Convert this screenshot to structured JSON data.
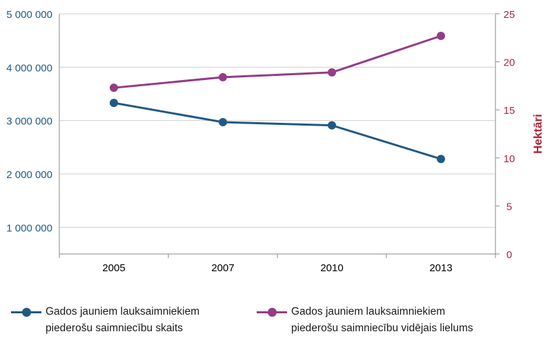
{
  "chart_data": {
    "type": "line",
    "categories": [
      "2005",
      "2007",
      "2010",
      "2013"
    ],
    "y_left": {
      "range": [
        500000,
        5000000
      ],
      "ticks": [
        1000000,
        2000000,
        3000000,
        4000000,
        5000000
      ],
      "tick_labels": [
        "1 000 000",
        "2 000 000",
        "3 000 000",
        "4 000 000",
        "5 000 000"
      ],
      "color": "#1f5a84"
    },
    "y_right": {
      "label": "Hektāri",
      "range": [
        0,
        25
      ],
      "ticks": [
        0,
        5,
        10,
        15,
        20,
        25
      ],
      "tick_labels": [
        "0",
        "5",
        "10",
        "15",
        "20",
        "25"
      ],
      "color": "#b0263d"
    },
    "series": [
      {
        "name": "Gados jauniem lauksaimniekiem piederošu saimniecību skaits",
        "axis": "left",
        "color": "#1f5a84",
        "values": [
          3330000,
          2970000,
          2910000,
          2280000
        ]
      },
      {
        "name": "Gados jauniem lauksaimniekiem piederošu saimniecību vidējais lielums",
        "axis": "right",
        "color": "#953c86",
        "values": [
          17.3,
          18.4,
          18.9,
          22.7
        ]
      }
    ],
    "grid": "horizontal",
    "legend_position": "bottom"
  }
}
